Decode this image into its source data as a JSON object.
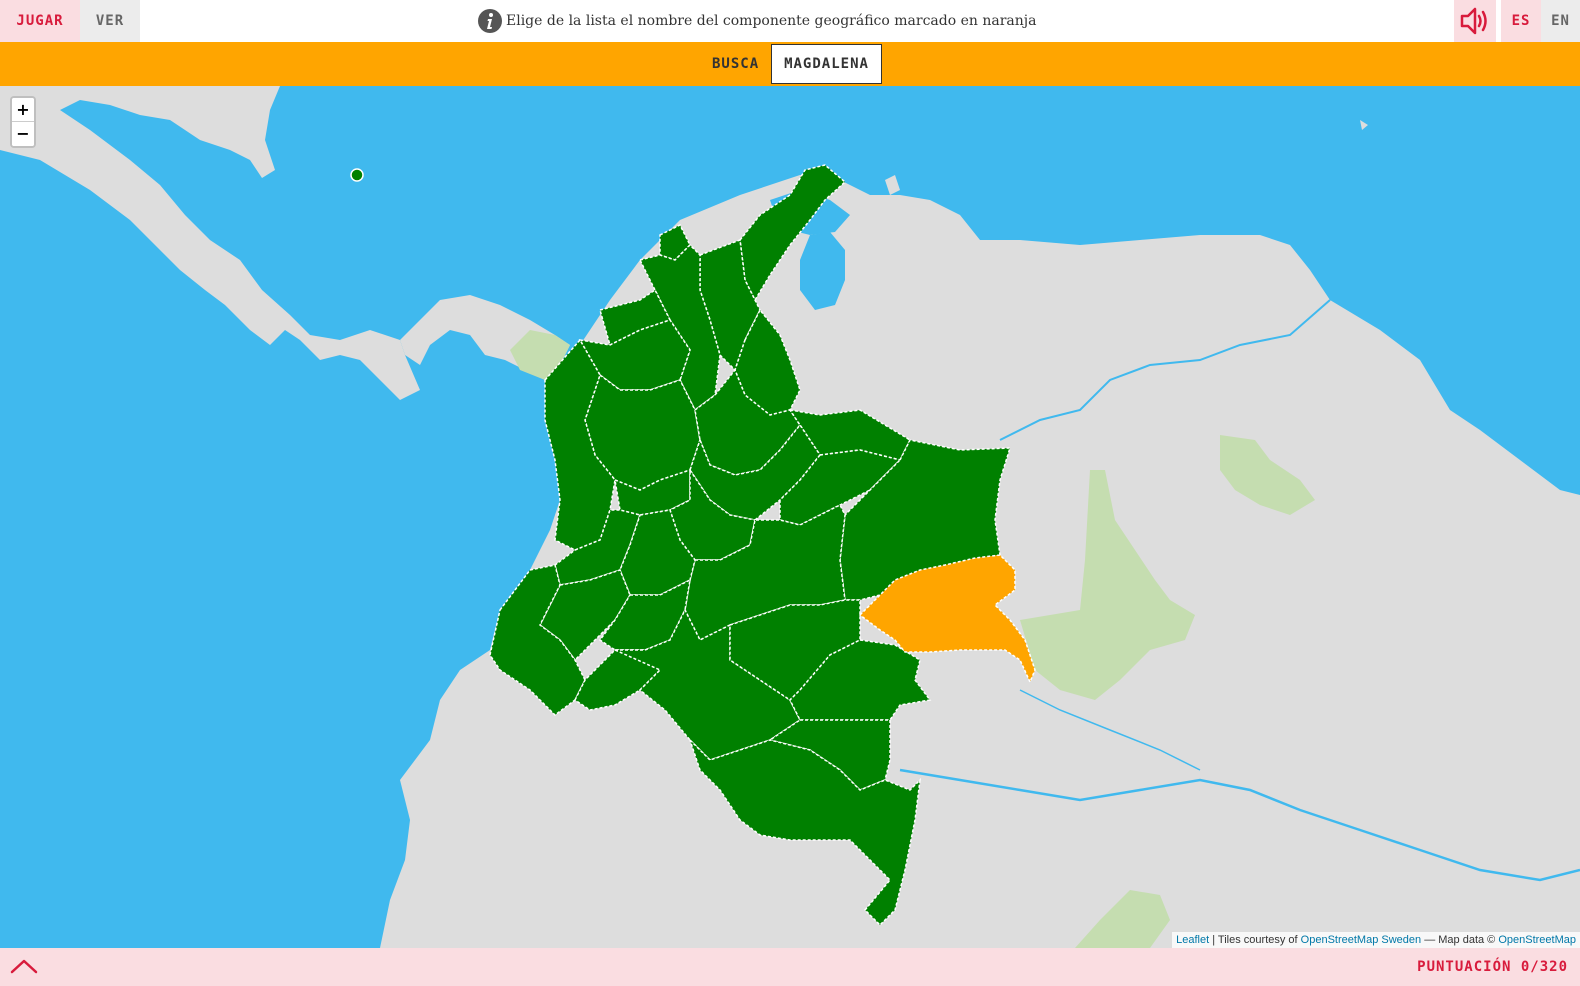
{
  "header": {
    "play_tab": "JUGAR",
    "view_tab": "VER",
    "instruction": "Elige de la lista el nombre del componente geográfico marcado en naranja",
    "info_icon": "info-icon",
    "sound_icon": "speaker-icon",
    "lang_es": "ES",
    "lang_en": "EN"
  },
  "question": {
    "find_label": "BUSCA",
    "target": "MAGDALENA"
  },
  "map": {
    "zoom_in": "+",
    "zoom_out": "−",
    "attribution": {
      "leaflet": "Leaflet",
      "tiles_prefix": " | Tiles courtesy of ",
      "tiles_link": "OpenStreetMap Sweden",
      "data_prefix": " — Map data © ",
      "data_link": "OpenStreetMap"
    },
    "colors": {
      "sea": "#40b9ee",
      "land": "#dddddd",
      "park": "#c5ddb0",
      "departments": "#008000",
      "highlighted": "#ffa500",
      "border": "#ffffff"
    }
  },
  "footer": {
    "expand_icon": "chevron-up-icon",
    "score": "PUNTUACIÓN 0/320"
  },
  "colors": {
    "accent": "#d81b3c",
    "tab_active_bg": "#fadde1",
    "tab_inactive_bg": "#ececec",
    "question_bar": "#ffa500"
  }
}
